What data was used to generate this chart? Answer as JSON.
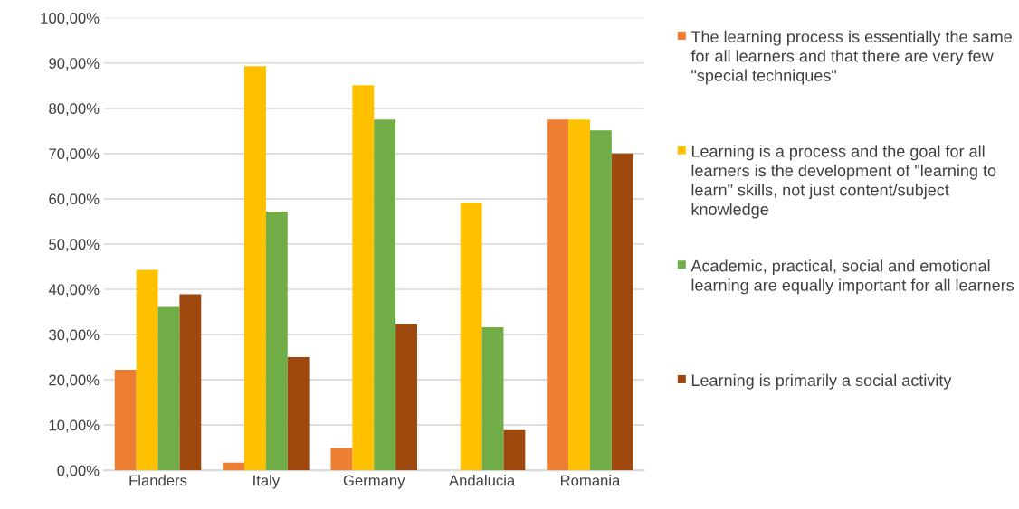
{
  "chart_data": {
    "type": "bar",
    "categories": [
      "Flanders",
      "Italy",
      "Germany",
      "Andalucia",
      "Romania"
    ],
    "series": [
      {
        "name": "The learning process is essentially the same for all learners and that there are very few \"special techniques\"",
        "color": "#ed7d31",
        "values": [
          22.2,
          1.7,
          4.9,
          0,
          77.5
        ]
      },
      {
        "name": "Learning is a process and the goal for all learners is the development of \"learning to learn\" skills, not just content/subject knowledge",
        "color": "#ffc000",
        "values": [
          44.3,
          89.3,
          85.1,
          59.2,
          77.5
        ]
      },
      {
        "name": "Academic, practical, social and emotional learning are equally important for all learners",
        "color": "#70ad47",
        "values": [
          36.1,
          57.2,
          77.5,
          31.6,
          75.1
        ]
      },
      {
        "name": "Learning is primarily a social activity",
        "color": "#9e480e",
        "values": [
          38.9,
          25.0,
          32.4,
          8.9,
          70.0
        ]
      }
    ],
    "ylim": [
      0,
      100
    ],
    "yticks": [
      {
        "value": 0,
        "label": "0,00%"
      },
      {
        "value": 10,
        "label": "10,00%"
      },
      {
        "value": 20,
        "label": "20,00%"
      },
      {
        "value": 30,
        "label": "30,00%"
      },
      {
        "value": 40,
        "label": "40,00%"
      },
      {
        "value": 50,
        "label": "50,00%"
      },
      {
        "value": 60,
        "label": "60,00%"
      },
      {
        "value": 70,
        "label": "70,00%"
      },
      {
        "value": 80,
        "label": "80,00%"
      },
      {
        "value": 90,
        "label": "90,00%"
      },
      {
        "value": 100,
        "label": "100,00%"
      }
    ],
    "grid": "y",
    "legend": "right"
  }
}
